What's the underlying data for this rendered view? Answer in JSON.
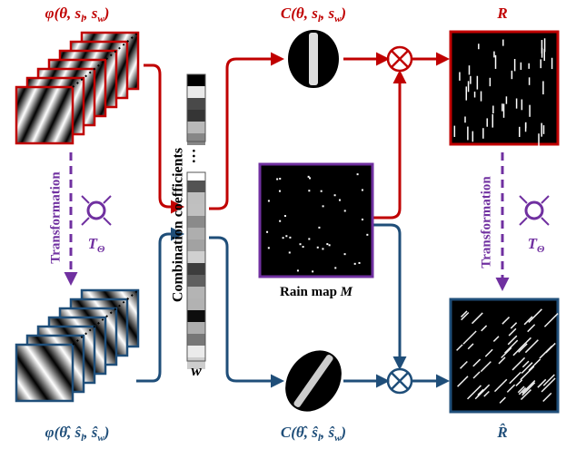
{
  "basis_top": [
    "φ(θ, s",
    "l",
    ", s",
    "w",
    ")"
  ],
  "conv_top": [
    "C(θ, s",
    "l",
    ", s",
    "w",
    ")"
  ],
  "rain_top": "R",
  "coefficients": {
    "title": "Combination coefficients",
    "ellipsis": "…",
    "symbol": "w"
  },
  "transform_left": {
    "label": "Transformation",
    "operator": [
      "T",
      "Θ"
    ]
  },
  "transform_right": {
    "label": "Transformation",
    "operator": [
      "T",
      "Θ"
    ]
  },
  "rain_map": {
    "label": [
      "Rain map ",
      "M"
    ]
  },
  "basis_bottom": [
    "φ(θ̂, ŝ",
    "l",
    ", ŝ",
    "w",
    ")"
  ],
  "conv_bottom": [
    "C(θ̂, ŝ",
    "l",
    ", ŝ",
    "w",
    ")"
  ],
  "rain_bottom": "R̂"
}
